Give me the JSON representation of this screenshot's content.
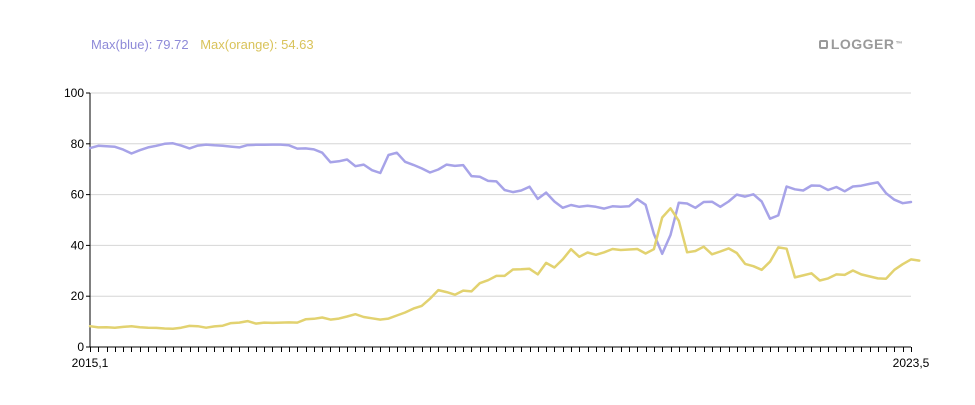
{
  "legend": {
    "blue_label": "Max(blue): 79.72",
    "orange_label": "Max(orange): 54.63"
  },
  "logo": {
    "text": "LOGGER",
    "mark": "™"
  },
  "colors": {
    "blue": "#a7a3e8",
    "orange": "#e2d270",
    "blue_text": "#8e8ad8",
    "orange_text": "#d9c35a",
    "grid": "#d6d6d6"
  },
  "chart_data": {
    "type": "line",
    "x_start_label": "2015,1",
    "x_end_label": "2023,5",
    "ylim": [
      0,
      100
    ],
    "yticks": [
      "0",
      "20",
      "40",
      "60",
      "80",
      "100"
    ],
    "grid": true,
    "series": [
      {
        "name": "blue",
        "values": [
          78.3,
          79.2,
          79.0,
          78.8,
          77.7,
          76.2,
          77.5,
          78.6,
          79.2,
          80.0,
          80.2,
          79.3,
          78.2,
          79.3,
          79.7,
          79.4,
          79.2,
          78.9,
          78.6,
          79.5,
          79.6,
          79.6,
          79.7,
          79.7,
          79.4,
          78.1,
          78.2,
          77.8,
          76.5,
          72.7,
          73.1,
          73.8,
          71.2,
          71.8,
          69.6,
          68.5,
          75.6,
          76.5,
          72.9,
          71.7,
          70.3,
          68.7,
          69.9,
          71.8,
          71.3,
          71.6,
          67.3,
          67.0,
          65.4,
          65.2,
          61.8,
          61.0,
          61.6,
          63.1,
          58.3,
          60.8,
          57.3,
          54.8,
          55.9,
          55.2,
          55.6,
          55.2,
          54.5,
          55.4,
          55.2,
          55.4,
          58.2,
          56.0,
          44.5,
          36.7,
          44.1,
          56.8,
          56.5,
          54.8,
          57.1,
          57.2,
          55.2,
          57.3,
          60.0,
          59.2,
          60.1,
          57.3,
          50.5,
          51.8,
          63.2,
          62.1,
          61.6,
          63.6,
          63.5,
          61.8,
          63.0,
          61.3,
          63.2,
          63.5,
          64.2,
          64.8,
          60.5,
          58.0,
          56.6,
          57.1
        ]
      },
      {
        "name": "orange",
        "values": [
          8.2,
          7.7,
          7.8,
          7.6,
          7.9,
          8.2,
          7.8,
          7.6,
          7.5,
          7.3,
          7.2,
          7.6,
          8.3,
          8.2,
          7.6,
          8.1,
          8.4,
          9.4,
          9.6,
          10.2,
          9.2,
          9.6,
          9.5,
          9.6,
          9.7,
          9.6,
          10.9,
          11.1,
          11.6,
          10.8,
          11.2,
          12.0,
          12.9,
          11.8,
          11.3,
          10.8,
          11.2,
          12.4,
          13.6,
          15.1,
          16.2,
          19.0,
          22.4,
          21.6,
          20.6,
          22.2,
          21.9,
          25.1,
          26.3,
          28.0,
          28.0,
          30.5,
          30.6,
          30.8,
          28.6,
          33.1,
          31.3,
          34.5,
          38.5,
          35.5,
          37.2,
          36.3,
          37.3,
          38.6,
          38.2,
          38.4,
          38.6,
          36.8,
          38.5,
          51.0,
          54.6,
          49.7,
          37.3,
          37.8,
          39.5,
          36.5,
          37.6,
          38.8,
          37.0,
          32.7,
          31.8,
          30.4,
          33.6,
          39.2,
          38.7,
          27.4,
          28.2,
          29.0,
          26.2,
          27.0,
          28.6,
          28.4,
          30.1,
          28.6,
          27.8,
          27.0,
          26.9,
          30.4,
          32.6,
          34.5,
          34.0
        ]
      }
    ]
  }
}
